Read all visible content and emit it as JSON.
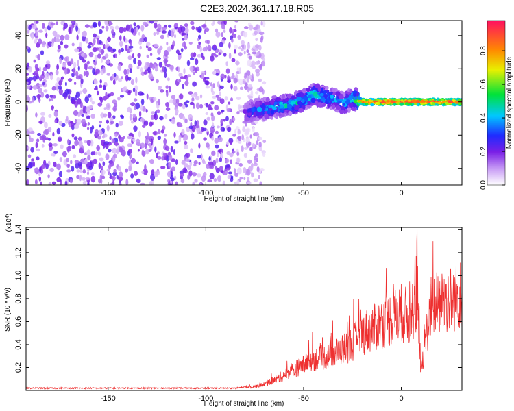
{
  "title": "C2E3.2024.361.17.18.R05",
  "colors": {
    "scatter_base": "#7a1fe6",
    "snr_line": "#ee3030",
    "axis": "#000000"
  },
  "chart_data": [
    {
      "type": "heatmap",
      "xlabel": "Height of straight line (km)",
      "ylabel": "Frequency (Hz)",
      "xlim": [
        -192,
        31
      ],
      "ylim": [
        -50,
        49
      ],
      "x_ticks": [
        -150,
        -100,
        -50,
        0
      ],
      "y_ticks": [
        -40,
        -20,
        0,
        20,
        40
      ],
      "colorbar": {
        "label": "Normalized spectral amplitude",
        "range": [
          0,
          0.98
        ],
        "ticks": [
          0.0,
          0.2,
          0.4,
          0.6,
          0.8
        ]
      },
      "noise_region": {
        "x_range": [
          -192,
          -70
        ],
        "y_range": [
          -50,
          49
        ],
        "amplitude": [
          0.05,
          0.25
        ]
      },
      "signal_band": [
        {
          "x": -80,
          "y": -7,
          "amplitude": 0.3
        },
        {
          "x": -75,
          "y": -5,
          "amplitude": 0.35
        },
        {
          "x": -70,
          "y": -4,
          "amplitude": 0.4
        },
        {
          "x": -65,
          "y": -3,
          "amplitude": 0.45
        },
        {
          "x": -60,
          "y": -2,
          "amplitude": 0.5
        },
        {
          "x": -55,
          "y": -1,
          "amplitude": 0.5
        },
        {
          "x": -50,
          "y": 1,
          "amplitude": 0.5
        },
        {
          "x": -45,
          "y": 5,
          "amplitude": 0.55
        },
        {
          "x": -40,
          "y": 3,
          "amplitude": 0.5
        },
        {
          "x": -35,
          "y": 2,
          "amplitude": 0.45
        },
        {
          "x": -30,
          "y": -1,
          "amplitude": 0.45
        },
        {
          "x": -25,
          "y": 2,
          "amplitude": 0.5
        },
        {
          "x": -20,
          "y": 0,
          "amplitude": 0.9
        },
        {
          "x": -10,
          "y": 0,
          "amplitude": 0.95
        },
        {
          "x": 0,
          "y": 0,
          "amplitude": 0.95
        },
        {
          "x": 10,
          "y": 0,
          "amplitude": 0.95
        },
        {
          "x": 20,
          "y": 0,
          "amplitude": 0.95
        },
        {
          "x": 30,
          "y": 0,
          "amplitude": 0.9
        }
      ]
    },
    {
      "type": "line",
      "xlabel": "Height of straight line (km)",
      "ylabel": "SNR (10 * v/v)",
      "y_multiplier_label": "(x10",
      "y_multiplier_exp": "4",
      "y_multiplier_close": ")",
      "xlim": [
        -192,
        31
      ],
      "ylim": [
        0,
        1.42
      ],
      "x_ticks": [
        -150,
        -100,
        -50,
        0
      ],
      "y_ticks": [
        0.2,
        0.4,
        0.6,
        0.8,
        1.0,
        1.2,
        1.4
      ],
      "series": [
        {
          "x": [
            -192,
            -170,
            -150,
            -130,
            -110,
            -95,
            -85,
            -80,
            -75,
            -70,
            -65,
            -60,
            -55,
            -50,
            -45,
            -40,
            -35,
            -30,
            -25,
            -20,
            -15,
            -10,
            -5,
            0,
            5,
            8,
            10,
            15,
            20,
            25,
            31
          ],
          "y": [
            0.02,
            0.02,
            0.02,
            0.02,
            0.02,
            0.02,
            0.02,
            0.03,
            0.04,
            0.06,
            0.1,
            0.15,
            0.2,
            0.25,
            0.3,
            0.32,
            0.35,
            0.4,
            0.45,
            0.55,
            0.6,
            0.65,
            0.7,
            0.75,
            0.7,
            1.35,
            0.2,
            0.8,
            0.85,
            0.9,
            0.95
          ]
        }
      ]
    }
  ]
}
